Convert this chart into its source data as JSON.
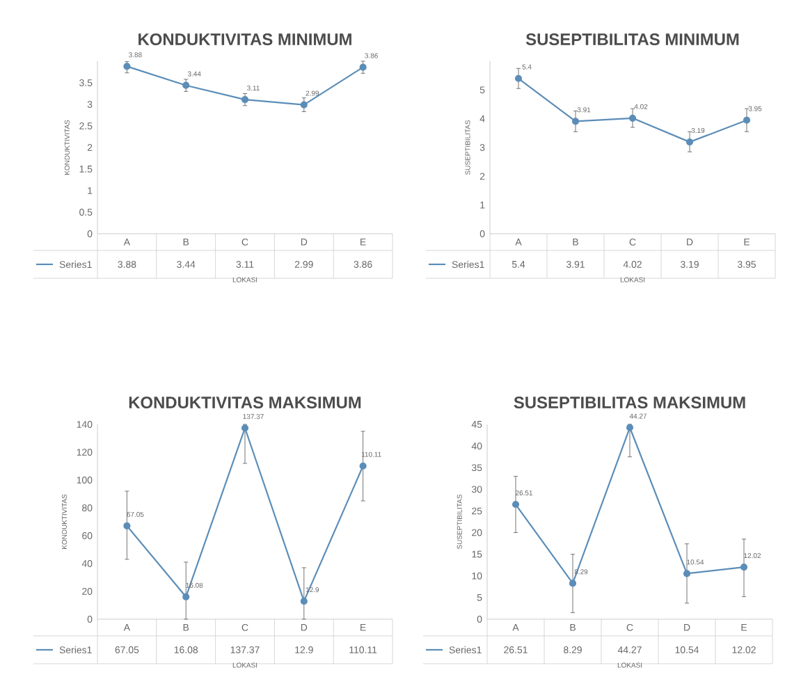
{
  "chart_data": [
    {
      "type": "line",
      "title": "KONDUKTIVITAS MINIMUM",
      "xlabel": "LOKASI",
      "ylabel": "KONDUKTIVITAS",
      "categories": [
        "A",
        "B",
        "C",
        "D",
        "E"
      ],
      "series": [
        {
          "name": "Series1",
          "color": "#5b8db8",
          "values": [
            3.88,
            3.44,
            3.11,
            2.99,
            3.86
          ],
          "value_labels": [
            "3.88",
            "3.44",
            "3.11",
            "2.99",
            "3.86"
          ],
          "errors": [
            [
              3.73,
              3.99
            ],
            [
              3.3,
              3.58
            ],
            [
              2.97,
              3.25
            ],
            [
              2.83,
              3.15
            ],
            [
              3.72,
              4.0
            ]
          ]
        }
      ],
      "ylim": [
        0,
        4
      ],
      "yticks": [
        0,
        0.5,
        1,
        1.5,
        2,
        2.5,
        3,
        3.5
      ],
      "data_labels": true,
      "legend": "bottom",
      "marker": "circle",
      "line_style": "solid"
    },
    {
      "type": "line",
      "title": "SUSEPTIBILITAS MINIMUM",
      "xlabel": "LOKASI",
      "ylabel": "SUSEPTIBILITAS",
      "categories": [
        "A",
        "B",
        "C",
        "D",
        "E"
      ],
      "series": [
        {
          "name": "Series1",
          "color": "#5b8db8",
          "values": [
            5.4,
            3.91,
            4.02,
            3.19,
            3.95
          ],
          "value_labels": [
            "5.4",
            "3.91",
            "4.02",
            "3.19",
            "3.95"
          ],
          "errors": [
            [
              5.05,
              5.75
            ],
            [
              3.55,
              4.27
            ],
            [
              3.7,
              4.35
            ],
            [
              2.85,
              3.55
            ],
            [
              3.55,
              4.35
            ]
          ]
        }
      ],
      "ylim": [
        0,
        6
      ],
      "yticks": [
        0,
        1,
        2,
        3,
        4,
        5
      ],
      "data_labels": true,
      "legend": "bottom",
      "marker": "circle",
      "line_style": "solid"
    },
    {
      "type": "line",
      "title": "KONDUKTIVITAS MAKSIMUM",
      "xlabel": "LOKASI",
      "ylabel": "KONDUKTIVITAS",
      "categories": [
        "A",
        "B",
        "C",
        "D",
        "E"
      ],
      "series": [
        {
          "name": "Series1",
          "color": "#5b8db8",
          "values": [
            67.05,
            16.08,
            137.37,
            12.9,
            110.11
          ],
          "value_labels": [
            "67.05",
            "16.08",
            "137.37",
            "12.9",
            "110.11"
          ],
          "errors": [
            [
              43,
              92
            ],
            [
              0,
              41
            ],
            [
              112,
              140
            ],
            [
              0,
              37
            ],
            [
              85,
              135
            ]
          ]
        }
      ],
      "ylim": [
        0,
        140
      ],
      "yticks": [
        0,
        20,
        40,
        60,
        80,
        100,
        120,
        140
      ],
      "data_labels": true,
      "legend": "bottom",
      "marker": "circle",
      "line_style": "solid"
    },
    {
      "type": "line",
      "title": "SUSEPTIBILITAS MAKSIMUM",
      "xlabel": "LOKASI",
      "ylabel": "SUSEPTIBILITAS",
      "categories": [
        "A",
        "B",
        "C",
        "D",
        "E"
      ],
      "series": [
        {
          "name": "Series1",
          "color": "#5b8db8",
          "values": [
            26.51,
            8.29,
            44.27,
            10.54,
            12.02
          ],
          "value_labels": [
            "26.51",
            "8.29",
            "44.27",
            "10.54",
            "12.02"
          ],
          "errors": [
            [
              20,
              33
            ],
            [
              1.5,
              15
            ],
            [
              37.5,
              45
            ],
            [
              3.7,
              17.4
            ],
            [
              5.2,
              18.5
            ]
          ]
        }
      ],
      "ylim": [
        0,
        45
      ],
      "yticks": [
        0,
        5,
        10,
        15,
        20,
        25,
        30,
        35,
        40,
        45
      ],
      "data_labels": true,
      "legend": "bottom",
      "marker": "circle",
      "line_style": "solid"
    }
  ]
}
